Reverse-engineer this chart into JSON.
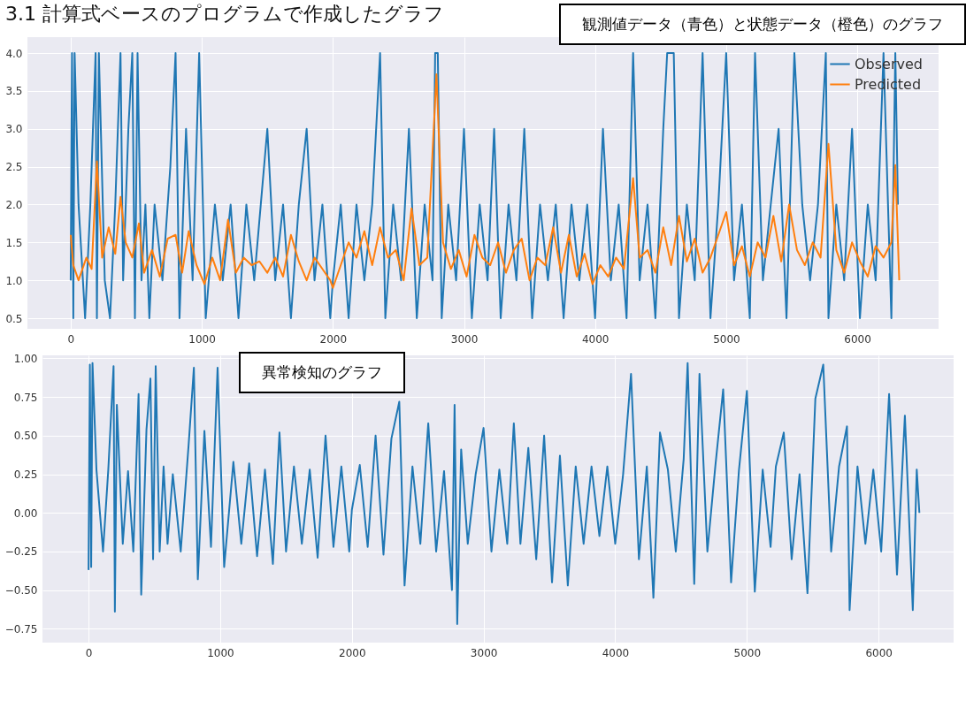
{
  "chart_data": [
    {
      "type": "line",
      "title": "3.1 計算式ベースのプログラムで作成したグラフ",
      "annotations": [
        "観測値データ（青色）と状態データ（橙色）のグラフ"
      ],
      "legend": "top right",
      "grid": true,
      "xlim": [
        -330,
        6620
      ],
      "xticks": [
        0,
        1000,
        2000,
        3000,
        4000,
        5000,
        6000
      ],
      "ylim": [
        0.36,
        4.21
      ],
      "yticks": [
        0.5,
        {
          "value": 1,
          "label": "1.0"
        },
        1.5,
        {
          "value": 2,
          "label": "2.0"
        },
        2.5,
        {
          "value": 3,
          "label": "3.0"
        },
        3.5,
        {
          "value": 4,
          "label": "4.0"
        }
      ],
      "series": [
        {
          "name": "Observed",
          "color": "#1f77b4",
          "x": [
            0,
            10,
            20,
            30,
            60,
            110,
            150,
            190,
            200,
            215,
            260,
            300,
            340,
            380,
            400,
            440,
            470,
            490,
            510,
            540,
            570,
            600,
            640,
            700,
            760,
            800,
            830,
            880,
            930,
            980,
            1030,
            1100,
            1160,
            1220,
            1280,
            1340,
            1400,
            1450,
            1500,
            1560,
            1620,
            1680,
            1740,
            1800,
            1860,
            1920,
            1980,
            2000,
            2060,
            2120,
            2180,
            2240,
            2300,
            2360,
            2400,
            2460,
            2520,
            2580,
            2640,
            2700,
            2760,
            2780,
            2800,
            2830,
            2880,
            2940,
            3000,
            3060,
            3120,
            3180,
            3230,
            3280,
            3340,
            3400,
            3460,
            3520,
            3580,
            3640,
            3700,
            3760,
            3820,
            3880,
            3940,
            4000,
            4060,
            4120,
            4180,
            4240,
            4290,
            4340,
            4400,
            4460,
            4520,
            4550,
            4600,
            4640,
            4700,
            4760,
            4820,
            4880,
            4940,
            5000,
            5060,
            5120,
            5180,
            5220,
            5280,
            5340,
            5400,
            5460,
            5520,
            5580,
            5640,
            5700,
            5760,
            5780,
            5840,
            5900,
            5960,
            6020,
            6080,
            6140,
            6200,
            6260,
            6290,
            6310
          ],
          "values": [
            1,
            4,
            0.5,
            4,
            2,
            0.5,
            2,
            4,
            0.5,
            4,
            1,
            0.5,
            2,
            4,
            1,
            3,
            4,
            0.5,
            4,
            1,
            2,
            0.5,
            2,
            1,
            2.5,
            4,
            0.5,
            3,
            1,
            4,
            0.5,
            2,
            1,
            2,
            0.5,
            2,
            1,
            2,
            3,
            1,
            2,
            0.5,
            2,
            3,
            1,
            2,
            0.5,
            1,
            2,
            0.5,
            2,
            1,
            2,
            4,
            0.5,
            2,
            1,
            3,
            0.5,
            2,
            1,
            4,
            4,
            0.5,
            2,
            1,
            3,
            0.5,
            2,
            1,
            3,
            0.5,
            2,
            1,
            3,
            0.5,
            2,
            1,
            2,
            0.5,
            2,
            1,
            2,
            0.5,
            3,
            1,
            2,
            0.5,
            4,
            1,
            2,
            0.5,
            3,
            4,
            4,
            0.5,
            2,
            1,
            4,
            0.5,
            2,
            4,
            1,
            2,
            0.5,
            4,
            1,
            2,
            3,
            0.5,
            4,
            2,
            1,
            2,
            4,
            0.5,
            2,
            1,
            3,
            0.5,
            2,
            1,
            4,
            0.5,
            4,
            2
          ]
        },
        {
          "name": "Predicted",
          "color": "#ff7f0e",
          "x": [
            0,
            20,
            60,
            120,
            160,
            200,
            240,
            290,
            340,
            380,
            420,
            470,
            520,
            560,
            620,
            680,
            740,
            800,
            850,
            900,
            960,
            1020,
            1080,
            1140,
            1200,
            1260,
            1320,
            1380,
            1440,
            1500,
            1560,
            1620,
            1680,
            1740,
            1800,
            1860,
            1920,
            1980,
            2000,
            2060,
            2120,
            2180,
            2240,
            2300,
            2360,
            2420,
            2480,
            2540,
            2600,
            2660,
            2720,
            2790,
            2840,
            2900,
            2960,
            3020,
            3080,
            3140,
            3200,
            3260,
            3320,
            3380,
            3440,
            3500,
            3560,
            3620,
            3680,
            3740,
            3800,
            3860,
            3920,
            3980,
            4040,
            4100,
            4160,
            4220,
            4290,
            4340,
            4400,
            4460,
            4520,
            4580,
            4640,
            4700,
            4760,
            4820,
            4880,
            4940,
            5000,
            5060,
            5120,
            5180,
            5240,
            5300,
            5360,
            5420,
            5480,
            5540,
            5600,
            5660,
            5720,
            5780,
            5840,
            5900,
            5960,
            6020,
            6080,
            6140,
            6200,
            6260,
            6290,
            6320
          ],
          "values": [
            1.6,
            1.2,
            1.0,
            1.3,
            1.15,
            2.57,
            1.3,
            1.7,
            1.35,
            2.1,
            1.5,
            1.3,
            1.75,
            1.1,
            1.4,
            1.05,
            1.55,
            1.6,
            1.1,
            1.65,
            1.2,
            0.95,
            1.3,
            1.0,
            1.8,
            1.1,
            1.3,
            1.2,
            1.25,
            1.1,
            1.3,
            1.05,
            1.6,
            1.25,
            1.0,
            1.3,
            1.15,
            1.0,
            0.9,
            1.2,
            1.5,
            1.3,
            1.65,
            1.2,
            1.7,
            1.3,
            1.4,
            1.0,
            1.95,
            1.2,
            1.3,
            3.72,
            1.5,
            1.15,
            1.4,
            1.05,
            1.6,
            1.3,
            1.2,
            1.5,
            1.1,
            1.4,
            1.55,
            1.0,
            1.3,
            1.2,
            1.7,
            1.1,
            1.6,
            1.05,
            1.35,
            0.95,
            1.2,
            1.05,
            1.3,
            1.15,
            2.35,
            1.3,
            1.4,
            1.1,
            1.7,
            1.2,
            1.85,
            1.25,
            1.55,
            1.1,
            1.3,
            1.6,
            1.9,
            1.2,
            1.45,
            1.05,
            1.5,
            1.3,
            1.85,
            1.25,
            2.0,
            1.4,
            1.2,
            1.5,
            1.3,
            2.8,
            1.4,
            1.1,
            1.5,
            1.25,
            1.05,
            1.45,
            1.3,
            1.5,
            2.52,
            1.0
          ]
        }
      ]
    },
    {
      "type": "line",
      "annotations": [
        "異常検知のグラフ"
      ],
      "grid": true,
      "xlim": [
        -350,
        6570
      ],
      "xticks": [
        0,
        1000,
        2000,
        3000,
        4000,
        5000,
        6000
      ],
      "ylim": [
        -0.84,
        1.02
      ],
      "yticks": [
        {
          "value": -0.75,
          "label": "−0.75"
        },
        {
          "value": -0.5,
          "label": "−0.50"
        },
        {
          "value": -0.25,
          "label": "−0.25"
        },
        {
          "value": 0,
          "label": "0.00"
        },
        0.25,
        {
          "value": 0.5,
          "label": "0.50"
        },
        0.75,
        {
          "value": 1,
          "label": "1.00"
        }
      ],
      "series": [
        {
          "color": "#1f77b4",
          "x": [
            0,
            10,
            20,
            30,
            60,
            110,
            150,
            190,
            200,
            215,
            260,
            300,
            340,
            380,
            400,
            440,
            470,
            490,
            510,
            540,
            570,
            600,
            640,
            700,
            760,
            800,
            830,
            880,
            930,
            980,
            1030,
            1100,
            1160,
            1220,
            1280,
            1340,
            1400,
            1450,
            1500,
            1560,
            1620,
            1680,
            1740,
            1800,
            1860,
            1920,
            1980,
            2000,
            2060,
            2120,
            2180,
            2240,
            2300,
            2360,
            2400,
            2460,
            2520,
            2580,
            2640,
            2700,
            2760,
            2780,
            2800,
            2830,
            2880,
            2940,
            3000,
            3060,
            3120,
            3180,
            3230,
            3280,
            3340,
            3400,
            3460,
            3520,
            3580,
            3640,
            3700,
            3760,
            3820,
            3880,
            3940,
            4000,
            4060,
            4120,
            4180,
            4240,
            4290,
            4340,
            4400,
            4460,
            4520,
            4550,
            4600,
            4640,
            4700,
            4760,
            4820,
            4880,
            4940,
            5000,
            5060,
            5120,
            5180,
            5220,
            5280,
            5340,
            5400,
            5460,
            5520,
            5580,
            5640,
            5700,
            5760,
            5780,
            5840,
            5900,
            5960,
            6020,
            6080,
            6140,
            6200,
            6260,
            6290,
            6310
          ],
          "values": [
            -0.37,
            0.96,
            -0.35,
            0.97,
            0.28,
            -0.25,
            0.28,
            0.95,
            -0.64,
            0.7,
            -0.2,
            0.27,
            -0.25,
            0.77,
            -0.53,
            0.54,
            0.87,
            -0.3,
            0.95,
            -0.25,
            0.3,
            -0.2,
            0.25,
            -0.25,
            0.44,
            0.94,
            -0.43,
            0.53,
            -0.22,
            0.94,
            -0.35,
            0.33,
            -0.2,
            0.32,
            -0.28,
            0.28,
            -0.33,
            0.52,
            -0.25,
            0.3,
            -0.2,
            0.28,
            -0.29,
            0.5,
            -0.22,
            0.3,
            -0.25,
            0.02,
            0.31,
            -0.22,
            0.5,
            -0.27,
            0.48,
            0.72,
            -0.47,
            0.3,
            -0.2,
            0.58,
            -0.25,
            0.27,
            -0.5,
            0.7,
            -0.72,
            0.41,
            -0.2,
            0.25,
            0.55,
            -0.25,
            0.28,
            -0.2,
            0.58,
            -0.2,
            0.42,
            -0.3,
            0.5,
            -0.45,
            0.37,
            -0.47,
            0.3,
            -0.2,
            0.3,
            -0.15,
            0.3,
            -0.2,
            0.25,
            0.9,
            -0.3,
            0.3,
            -0.55,
            0.52,
            0.28,
            -0.25,
            0.35,
            0.97,
            -0.46,
            0.9,
            -0.25,
            0.3,
            0.8,
            -0.45,
            0.28,
            0.79,
            -0.51,
            0.28,
            -0.22,
            0.3,
            0.52,
            -0.3,
            0.25,
            -0.52,
            0.74,
            0.96,
            -0.25,
            0.3,
            0.56,
            -0.63,
            0.3,
            -0.2,
            0.28,
            -0.25,
            0.77,
            -0.4,
            0.63,
            -0.63,
            0.28,
            0.0
          ]
        }
      ]
    }
  ]
}
